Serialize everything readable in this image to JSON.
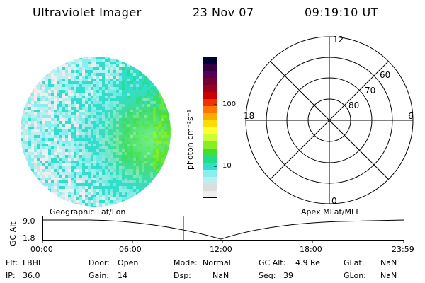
{
  "header": {
    "instrument": "Ultraviolet Imager",
    "date": "23 Nov 07",
    "time": "09:19:10 UT"
  },
  "colorbar": {
    "label": "photon cm⁻²s⁻¹",
    "ticks": [
      "100",
      "10"
    ],
    "colors": [
      "#000033",
      "#330044",
      "#550055",
      "#770033",
      "#990022",
      "#cc0000",
      "#ee3300",
      "#ff7700",
      "#ffaa00",
      "#ffdd00",
      "#ffff33",
      "#ccff33",
      "#88ee22",
      "#44dd33",
      "#22dd88",
      "#33ddcc",
      "#88eeee",
      "#bbeeee",
      "#dddddd",
      "#eeeeee"
    ]
  },
  "polar": {
    "mlt_labels": [
      "12",
      "18",
      "6",
      "0"
    ],
    "lat_labels": [
      "60",
      "70",
      "80"
    ]
  },
  "timeline": {
    "axis_label": "GC Alt",
    "left_header": "Geographic Lat/Lon",
    "right_header": "Apex MLat/MLT",
    "y_ticks": [
      "9.0",
      "1.8"
    ],
    "x_ticks": [
      "00:00",
      "06:00",
      "12:00",
      "18:00",
      "23:59"
    ],
    "marker_color": "#cc0000"
  },
  "info": {
    "flt_label": "Flt:",
    "flt_value": "LBHL",
    "ip_label": "IP:",
    "ip_value": "36.0",
    "door_label": "Door:",
    "door_value": "Open",
    "gain_label": "Gain:",
    "gain_value": "14",
    "mode_label": "Mode:",
    "mode_value": "Normal",
    "dsp_label": "Dsp:",
    "dsp_value": "NaN",
    "gcalt_label": "GC Alt:",
    "gcalt_value": "4.9 Re",
    "seq_label": "Seq:",
    "seq_value": "39",
    "glat_label": "GLat:",
    "glat_value": "NaN",
    "glon_label": "GLon:",
    "glon_value": "NaN"
  }
}
